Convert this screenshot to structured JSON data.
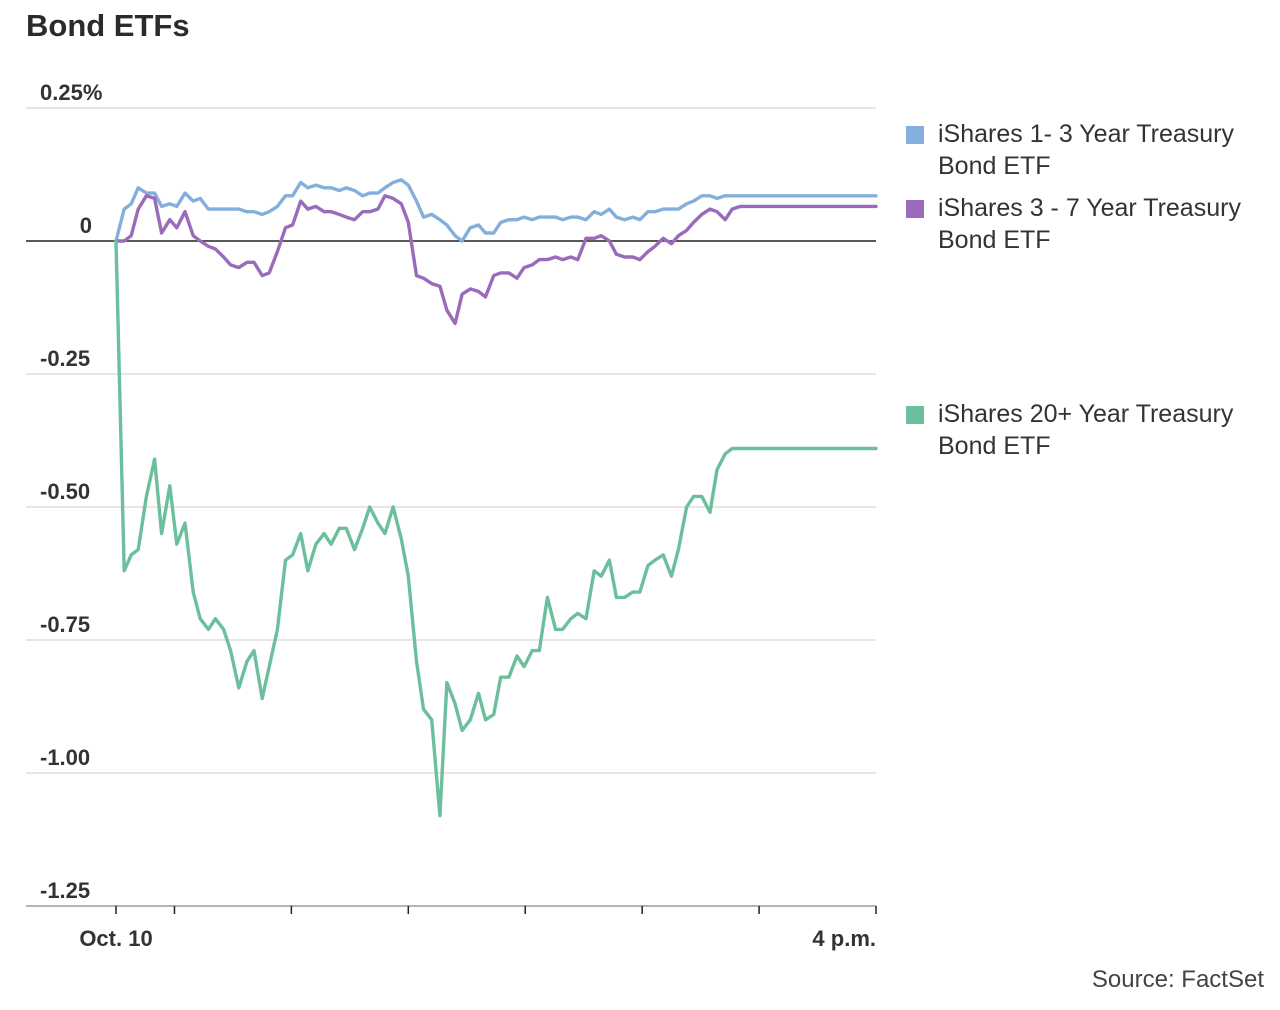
{
  "chart_data": {
    "type": "line",
    "title": "Bond ETFs",
    "source": "Source: FactSet",
    "ylim": [
      -1.25,
      0.25
    ],
    "yticks": [
      {
        "value": 0.25,
        "label": "0.25%"
      },
      {
        "value": 0,
        "label": "0"
      },
      {
        "value": -0.25,
        "label": "-0.25"
      },
      {
        "value": -0.5,
        "label": "-0.50"
      },
      {
        "value": -0.75,
        "label": "-0.75"
      },
      {
        "value": -1.0,
        "label": "-1.00"
      },
      {
        "value": -1.25,
        "label": "-1.25"
      }
    ],
    "xlim": [
      0,
      6.5
    ],
    "xticks": [
      {
        "value": 0,
        "label": "Oct. 10"
      },
      {
        "value": 0.5,
        "label": ""
      },
      {
        "value": 1.5,
        "label": ""
      },
      {
        "value": 2.5,
        "label": ""
      },
      {
        "value": 3.5,
        "label": ""
      },
      {
        "value": 4.5,
        "label": ""
      },
      {
        "value": 5.5,
        "label": ""
      },
      {
        "value": 6.5,
        "label": "4 p.m."
      }
    ],
    "series": [
      {
        "name": "iShares 1- 3 Year Treasury Bond ETF",
        "color": "#84aedc",
        "x": [
          0,
          0.07,
          0.13,
          0.19,
          0.26,
          0.33,
          0.39,
          0.46,
          0.52,
          0.59,
          0.66,
          0.72,
          0.79,
          0.85,
          0.92,
          0.98,
          1.05,
          1.12,
          1.18,
          1.25,
          1.31,
          1.38,
          1.45,
          1.51,
          1.58,
          1.64,
          1.71,
          1.78,
          1.84,
          1.91,
          1.97,
          2.04,
          2.11,
          2.17,
          2.24,
          2.3,
          2.37,
          2.44,
          2.5,
          2.57,
          2.63,
          2.7,
          2.77,
          2.83,
          2.9,
          2.96,
          3.03,
          3.1,
          3.16,
          3.23,
          3.29,
          3.36,
          3.43,
          3.49,
          3.56,
          3.62,
          3.69,
          3.76,
          3.82,
          3.89,
          3.95,
          4.02,
          4.09,
          4.15,
          4.22,
          4.28,
          4.35,
          4.42,
          4.48,
          4.55,
          4.61,
          4.68,
          4.75,
          4.81,
          4.88,
          4.94,
          5.01,
          5.08,
          5.14,
          5.21,
          5.27,
          5.34,
          5.41,
          5.47,
          5.54,
          5.6,
          5.67,
          5.74,
          5.8,
          5.87,
          5.93,
          6.0,
          6.07,
          6.13,
          6.2,
          6.26,
          6.33,
          6.4,
          6.46,
          6.5
        ],
        "values": [
          0.0,
          0.06,
          0.07,
          0.1,
          0.09,
          0.09,
          0.065,
          0.07,
          0.065,
          0.09,
          0.075,
          0.08,
          0.06,
          0.06,
          0.06,
          0.06,
          0.06,
          0.055,
          0.055,
          0.05,
          0.055,
          0.065,
          0.085,
          0.085,
          0.11,
          0.1,
          0.105,
          0.1,
          0.1,
          0.095,
          0.1,
          0.095,
          0.085,
          0.09,
          0.09,
          0.1,
          0.11,
          0.115,
          0.105,
          0.075,
          0.045,
          0.05,
          0.04,
          0.03,
          0.01,
          0.0,
          0.025,
          0.03,
          0.015,
          0.015,
          0.035,
          0.04,
          0.04,
          0.045,
          0.04,
          0.045,
          0.045,
          0.045,
          0.04,
          0.045,
          0.045,
          0.04,
          0.055,
          0.05,
          0.06,
          0.045,
          0.04,
          0.045,
          0.04,
          0.055,
          0.055,
          0.06,
          0.06,
          0.06,
          0.07,
          0.075,
          0.085,
          0.085,
          0.08,
          0.085,
          0.085,
          0.085,
          0.085,
          0.085,
          0.085,
          0.085,
          0.085,
          0.085,
          0.085,
          0.085,
          0.085,
          0.085,
          0.085,
          0.085,
          0.085,
          0.085,
          0.085,
          0.085,
          0.085,
          0.085
        ]
      },
      {
        "name": "iShares 3 - 7 Year Treasury Bond ETF",
        "color": "#9b6bbb",
        "x": [
          0,
          0.07,
          0.13,
          0.19,
          0.26,
          0.33,
          0.39,
          0.46,
          0.52,
          0.59,
          0.66,
          0.72,
          0.79,
          0.85,
          0.92,
          0.98,
          1.05,
          1.12,
          1.18,
          1.25,
          1.31,
          1.38,
          1.45,
          1.51,
          1.58,
          1.64,
          1.71,
          1.78,
          1.84,
          1.91,
          1.97,
          2.04,
          2.11,
          2.17,
          2.24,
          2.3,
          2.37,
          2.44,
          2.5,
          2.57,
          2.63,
          2.7,
          2.77,
          2.83,
          2.9,
          2.96,
          3.03,
          3.1,
          3.16,
          3.23,
          3.29,
          3.36,
          3.43,
          3.49,
          3.56,
          3.62,
          3.69,
          3.76,
          3.82,
          3.89,
          3.95,
          4.02,
          4.09,
          4.15,
          4.22,
          4.28,
          4.35,
          4.42,
          4.48,
          4.55,
          4.61,
          4.68,
          4.75,
          4.81,
          4.88,
          4.94,
          5.01,
          5.08,
          5.14,
          5.21,
          5.27,
          5.34,
          5.41,
          5.47,
          5.54,
          5.6,
          5.67,
          5.74,
          5.8,
          5.87,
          5.93,
          6.0,
          6.07,
          6.13,
          6.2,
          6.26,
          6.33,
          6.4,
          6.46,
          6.5
        ],
        "values": [
          0.0,
          0.0,
          0.01,
          0.06,
          0.085,
          0.08,
          0.015,
          0.04,
          0.025,
          0.055,
          0.01,
          0.0,
          -0.01,
          -0.015,
          -0.03,
          -0.045,
          -0.05,
          -0.04,
          -0.04,
          -0.065,
          -0.06,
          -0.02,
          0.025,
          0.03,
          0.075,
          0.06,
          0.065,
          0.055,
          0.055,
          0.05,
          0.045,
          0.04,
          0.055,
          0.055,
          0.06,
          0.085,
          0.08,
          0.07,
          0.035,
          -0.065,
          -0.07,
          -0.08,
          -0.085,
          -0.13,
          -0.155,
          -0.1,
          -0.09,
          -0.095,
          -0.105,
          -0.065,
          -0.06,
          -0.06,
          -0.07,
          -0.05,
          -0.045,
          -0.035,
          -0.035,
          -0.03,
          -0.035,
          -0.03,
          -0.035,
          0.005,
          0.005,
          0.01,
          0.0,
          -0.025,
          -0.03,
          -0.03,
          -0.035,
          -0.02,
          -0.01,
          0.005,
          -0.005,
          0.01,
          0.02,
          0.035,
          0.05,
          0.06,
          0.055,
          0.04,
          0.06,
          0.065,
          0.065,
          0.065,
          0.065,
          0.065,
          0.065,
          0.065,
          0.065,
          0.065,
          0.065,
          0.065,
          0.065,
          0.065,
          0.065,
          0.065,
          0.065,
          0.065,
          0.065,
          0.065
        ]
      },
      {
        "name": "iShares 20+ Year Treasury Bond ETF",
        "color": "#6cbf9c",
        "x": [
          0,
          0.07,
          0.13,
          0.19,
          0.26,
          0.33,
          0.39,
          0.46,
          0.52,
          0.59,
          0.66,
          0.72,
          0.79,
          0.85,
          0.92,
          0.98,
          1.05,
          1.12,
          1.18,
          1.25,
          1.31,
          1.38,
          1.45,
          1.51,
          1.58,
          1.64,
          1.71,
          1.78,
          1.84,
          1.91,
          1.97,
          2.04,
          2.11,
          2.17,
          2.24,
          2.3,
          2.37,
          2.44,
          2.5,
          2.57,
          2.63,
          2.7,
          2.77,
          2.83,
          2.9,
          2.96,
          3.03,
          3.1,
          3.16,
          3.23,
          3.29,
          3.36,
          3.43,
          3.49,
          3.56,
          3.62,
          3.69,
          3.76,
          3.82,
          3.89,
          3.95,
          4.02,
          4.09,
          4.15,
          4.22,
          4.28,
          4.35,
          4.42,
          4.48,
          4.55,
          4.61,
          4.68,
          4.75,
          4.81,
          4.88,
          4.94,
          5.01,
          5.08,
          5.14,
          5.21,
          5.27,
          5.34,
          5.41,
          5.47,
          5.54,
          5.6,
          5.67,
          5.74,
          5.8,
          5.87,
          5.93,
          6.0,
          6.07,
          6.13,
          6.2,
          6.26,
          6.33,
          6.4,
          6.46,
          6.5
        ],
        "values": [
          0.0,
          -0.62,
          -0.59,
          -0.58,
          -0.48,
          -0.41,
          -0.55,
          -0.46,
          -0.57,
          -0.53,
          -0.66,
          -0.71,
          -0.73,
          -0.71,
          -0.73,
          -0.77,
          -0.84,
          -0.79,
          -0.77,
          -0.86,
          -0.8,
          -0.73,
          -0.6,
          -0.59,
          -0.55,
          -0.62,
          -0.57,
          -0.55,
          -0.57,
          -0.54,
          -0.54,
          -0.58,
          -0.54,
          -0.5,
          -0.53,
          -0.55,
          -0.5,
          -0.56,
          -0.63,
          -0.79,
          -0.88,
          -0.9,
          -1.08,
          -0.83,
          -0.87,
          -0.92,
          -0.9,
          -0.85,
          -0.9,
          -0.89,
          -0.82,
          -0.82,
          -0.78,
          -0.8,
          -0.77,
          -0.77,
          -0.67,
          -0.73,
          -0.73,
          -0.71,
          -0.7,
          -0.71,
          -0.62,
          -0.63,
          -0.6,
          -0.67,
          -0.67,
          -0.66,
          -0.66,
          -0.61,
          -0.6,
          -0.59,
          -0.63,
          -0.58,
          -0.5,
          -0.48,
          -0.48,
          -0.51,
          -0.43,
          -0.4,
          -0.39,
          -0.39,
          -0.39,
          -0.39,
          -0.39,
          -0.39,
          -0.39,
          -0.39,
          -0.39,
          -0.39,
          -0.39,
          -0.39,
          -0.39,
          -0.39,
          -0.39,
          -0.39,
          -0.39,
          -0.39,
          -0.39,
          -0.39
        ]
      }
    ]
  }
}
